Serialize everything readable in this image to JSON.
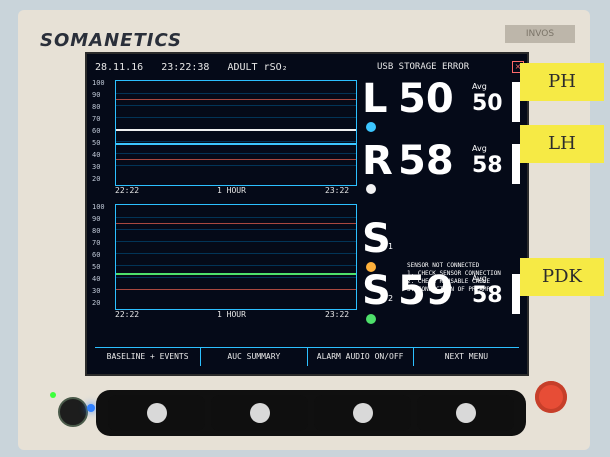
{
  "device": {
    "brand_text": "SOMANETICS",
    "model_badge": "INVOS"
  },
  "screen": {
    "date": "28.11.16",
    "time": "23:22:38",
    "mode": "ADULT",
    "param": "rSO₂",
    "usb_status": "USB STORAGE ERROR",
    "usb_icon": "usb-error-icon"
  },
  "graphs": {
    "top": {
      "y_ticks": [
        "100",
        "90",
        "80",
        "70",
        "60",
        "50",
        "40",
        "30",
        "20"
      ],
      "x_left": "22:22",
      "x_mid": "1 HOUR",
      "x_right": "23:22"
    },
    "bottom": {
      "y_ticks": [
        "100",
        "90",
        "80",
        "70",
        "60",
        "50",
        "40",
        "30",
        "20"
      ],
      "x_left": "22:22",
      "x_mid": "1 HOUR",
      "x_right": "23:22"
    }
  },
  "channels": [
    {
      "label": "L",
      "value": "50",
      "avg_label": "Avg",
      "avg_value": "50",
      "dot_color": "#3cc6ff"
    },
    {
      "label": "R",
      "value": "58",
      "avg_label": "Avg",
      "avg_value": "58",
      "dot_color": "#f3f3f3"
    },
    {
      "label": "S",
      "sub": "1",
      "value": "",
      "avg_label": "",
      "avg_value": "",
      "dot_color": "#ffb13b"
    },
    {
      "label": "S",
      "sub": "2",
      "value": "59",
      "avg_label": "Avg",
      "avg_value": "58",
      "dot_color": "#4ee06b"
    }
  ],
  "messages": [
    "SENSOR NOT CONNECTED",
    "1. CHECK SENSOR CONNECTION",
    "2. CHECK REUSABLE CABLE",
    "3. CONNECTION OF PREAMP"
  ],
  "menu": [
    "BASELINE + EVENTS",
    "AUC SUMMARY",
    "ALARM AUDIO ON/OFF",
    "NEXT MENU"
  ],
  "notes": [
    "PH",
    "LH",
    "PDK"
  ],
  "colors": {
    "screen_bg": "#050a18",
    "accent": "#2cc0ff"
  }
}
